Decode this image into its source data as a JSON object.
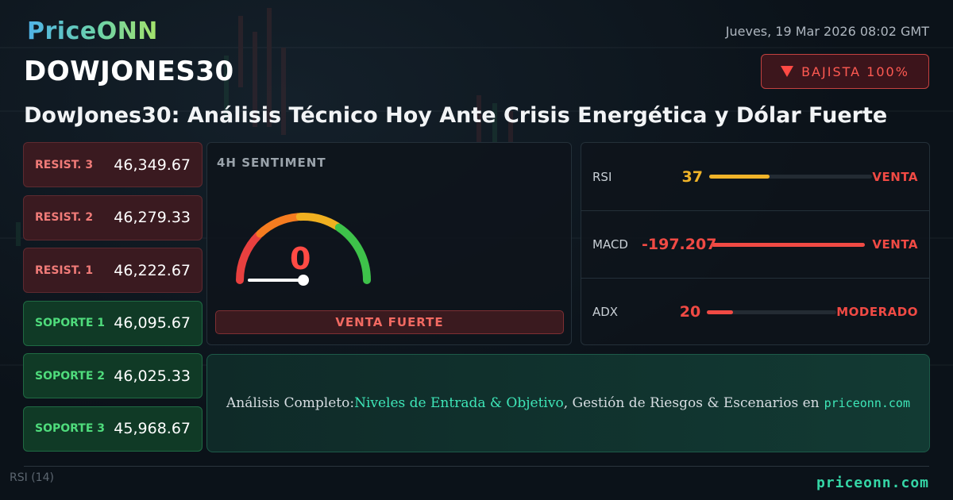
{
  "brand": {
    "logo": "PriceONN",
    "footer_site": "priceonn.com"
  },
  "header": {
    "datetime": "Jueves, 19 Mar 2026 08:02 GMT",
    "symbol": "DOWJONES30",
    "trend": {
      "label": "BAJISTA 100%",
      "color": "#ff4a44"
    },
    "headline": "DowJones30: Análisis Técnico Hoy Ante Crisis Energética y Dólar Fuerte"
  },
  "levels": [
    {
      "label": "RESIST. 3",
      "value": "46,349.67",
      "kind": "res"
    },
    {
      "label": "RESIST. 2",
      "value": "46,279.33",
      "kind": "res"
    },
    {
      "label": "RESIST. 1",
      "value": "46,222.67",
      "kind": "res"
    },
    {
      "label": "SOPORTE 1",
      "value": "46,095.67",
      "kind": "sup"
    },
    {
      "label": "SOPORTE 2",
      "value": "46,025.33",
      "kind": "sup"
    },
    {
      "label": "SOPORTE 3",
      "value": "45,968.67",
      "kind": "sup"
    }
  ],
  "sentiment": {
    "title": "4H SENTIMENT",
    "value": "0",
    "value_fraction": 0,
    "label": "VENTA FUERTE",
    "gauge_colors": [
      "#e8403f",
      "#f57c20",
      "#f0b020",
      "#3ec24a"
    ]
  },
  "indicators": [
    {
      "name": "RSI",
      "value": "37",
      "fill": 0.37,
      "signal": "VENTA",
      "value_color": "#f0b429",
      "bar_color": "#f0b429",
      "signal_color": "#f04a44"
    },
    {
      "name": "MACD",
      "value": "-197.207",
      "fill": 1.0,
      "signal": "VENTA",
      "value_color": "#f04a44",
      "bar_color": "#f04a44",
      "signal_color": "#f04a44"
    },
    {
      "name": "ADX",
      "value": "20",
      "fill": 0.2,
      "signal": "MODERADO",
      "value_color": "#f04a44",
      "bar_color": "#f04a44",
      "signal_color": "#f04a44"
    }
  ],
  "cta": {
    "prefix": "Análisis Completo: ",
    "highlight": "Niveles de Entrada & Objetivo",
    "suffix": ", Gestión de Riesgos & Escenarios en",
    "site": "priceonn.com"
  },
  "background": {
    "rsi_label": "RSI",
    "rsi_period": "(14)"
  }
}
